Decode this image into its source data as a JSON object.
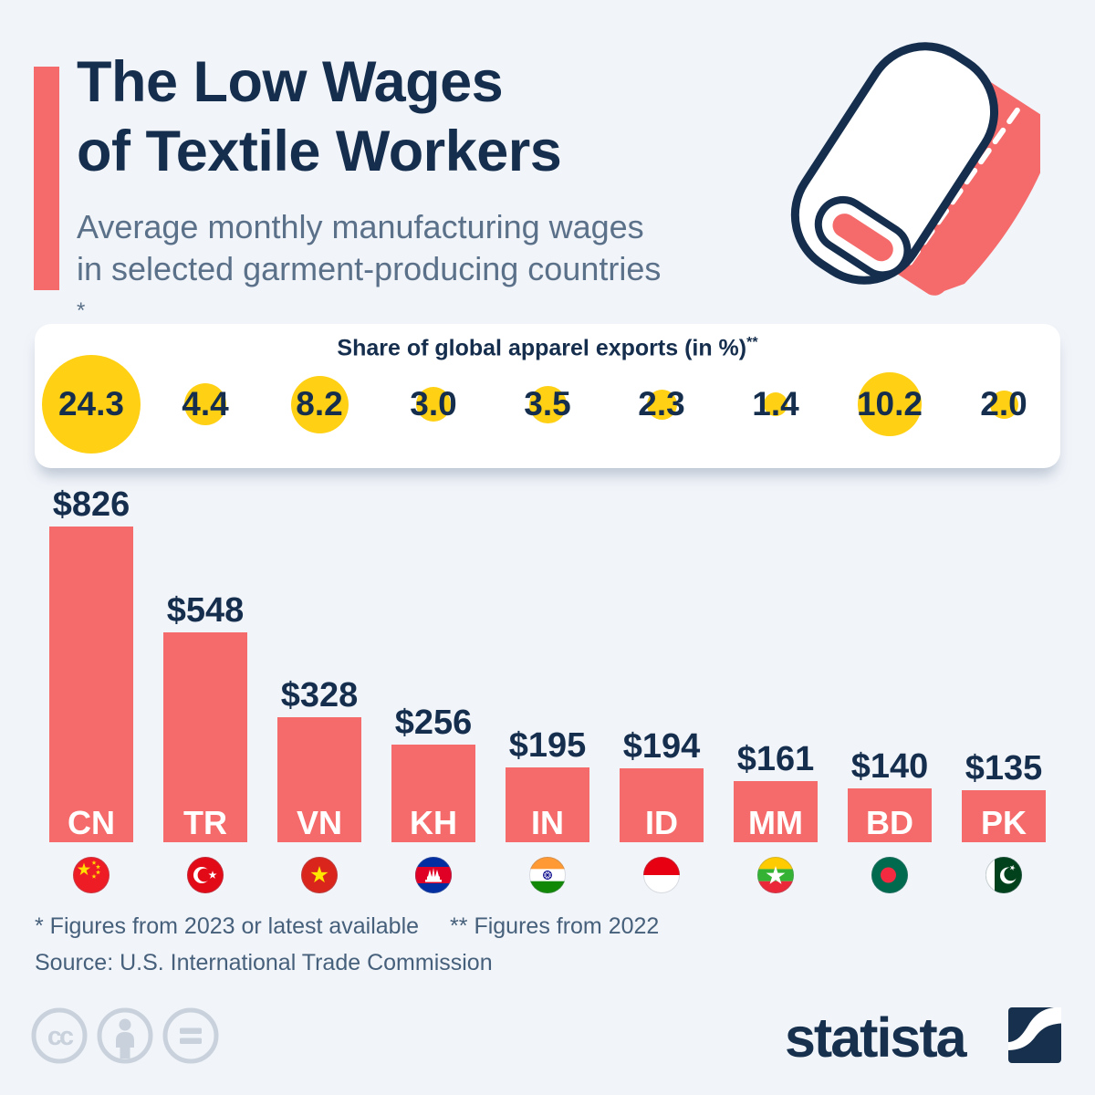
{
  "title": {
    "line1": "The Low Wages",
    "line2": "of Textile Workers"
  },
  "subtitle": {
    "line1": "Average monthly manufacturing wages",
    "line2": "in selected garment-producing countries",
    "footnote_marker": "*"
  },
  "export_panel": {
    "title": "Share of global apparel exports (in %)",
    "footnote_marker": "**"
  },
  "countries": [
    {
      "code": "CN",
      "flag_icon": "flag-china-icon",
      "wage_label": "$826",
      "wage_usd": 826,
      "export_share_pct": 24.3,
      "export_share_label": "24.3"
    },
    {
      "code": "TR",
      "flag_icon": "flag-turkey-icon",
      "wage_label": "$548",
      "wage_usd": 548,
      "export_share_pct": 4.4,
      "export_share_label": "4.4"
    },
    {
      "code": "VN",
      "flag_icon": "flag-vietnam-icon",
      "wage_label": "$328",
      "wage_usd": 328,
      "export_share_pct": 8.2,
      "export_share_label": "8.2"
    },
    {
      "code": "KH",
      "flag_icon": "flag-cambodia-icon",
      "wage_label": "$256",
      "wage_usd": 256,
      "export_share_pct": 3.0,
      "export_share_label": "3.0"
    },
    {
      "code": "IN",
      "flag_icon": "flag-india-icon",
      "wage_label": "$195",
      "wage_usd": 195,
      "export_share_pct": 3.5,
      "export_share_label": "3.5"
    },
    {
      "code": "ID",
      "flag_icon": "flag-indonesia-icon",
      "wage_label": "$194",
      "wage_usd": 194,
      "export_share_pct": 2.3,
      "export_share_label": "2.3"
    },
    {
      "code": "MM",
      "flag_icon": "flag-myanmar-icon",
      "wage_label": "$161",
      "wage_usd": 161,
      "export_share_pct": 1.4,
      "export_share_label": "1.4"
    },
    {
      "code": "BD",
      "flag_icon": "flag-bangladesh-icon",
      "wage_label": "$140",
      "wage_usd": 140,
      "export_share_pct": 10.2,
      "export_share_label": "10.2"
    },
    {
      "code": "PK",
      "flag_icon": "flag-pakistan-icon",
      "wage_label": "$135",
      "wage_usd": 135,
      "export_share_pct": 2.0,
      "export_share_label": "2.0"
    }
  ],
  "footnotes": {
    "asterisk": "* Figures from 2023 or latest available",
    "double_asterisk": "** Figures from 2022"
  },
  "source": "Source: U.S. International Trade Commission",
  "branding": {
    "logo_text": "statista"
  },
  "license_icons": [
    "cc-icon",
    "attribution-person-icon",
    "equals-icon"
  ],
  "colors": {
    "background": "#f1f4f9",
    "bar_red": "#f56b6b",
    "bubble_yellow": "#ffd013",
    "navy_text": "#152e4d",
    "subtitle_gray": "#5b7189",
    "footnote_gray": "#46607b",
    "license_gray": "#c9d2dc"
  },
  "chart_data": {
    "type": "bar",
    "categories": [
      "CN",
      "TR",
      "VN",
      "KH",
      "IN",
      "ID",
      "MM",
      "BD",
      "PK"
    ],
    "series": [
      {
        "name": "Average monthly manufacturing wage (USD)",
        "values": [
          826,
          548,
          328,
          256,
          195,
          194,
          161,
          140,
          135
        ]
      },
      {
        "name": "Share of global apparel exports (%, 2022)",
        "values": [
          24.3,
          4.4,
          8.2,
          3.0,
          3.5,
          2.3,
          1.4,
          10.2,
          2.0
        ]
      }
    ],
    "value_labels": [
      "$826",
      "$548",
      "$328",
      "$256",
      "$195",
      "$194",
      "$161",
      "$140",
      "$135"
    ],
    "title": "The Low Wages of Textile Workers",
    "subtitle": "Average monthly manufacturing wages in selected garment-producing countries",
    "xlabel": "",
    "ylabel": "",
    "ylim": [
      0,
      826
    ],
    "grid": false,
    "legend_position": "none"
  }
}
